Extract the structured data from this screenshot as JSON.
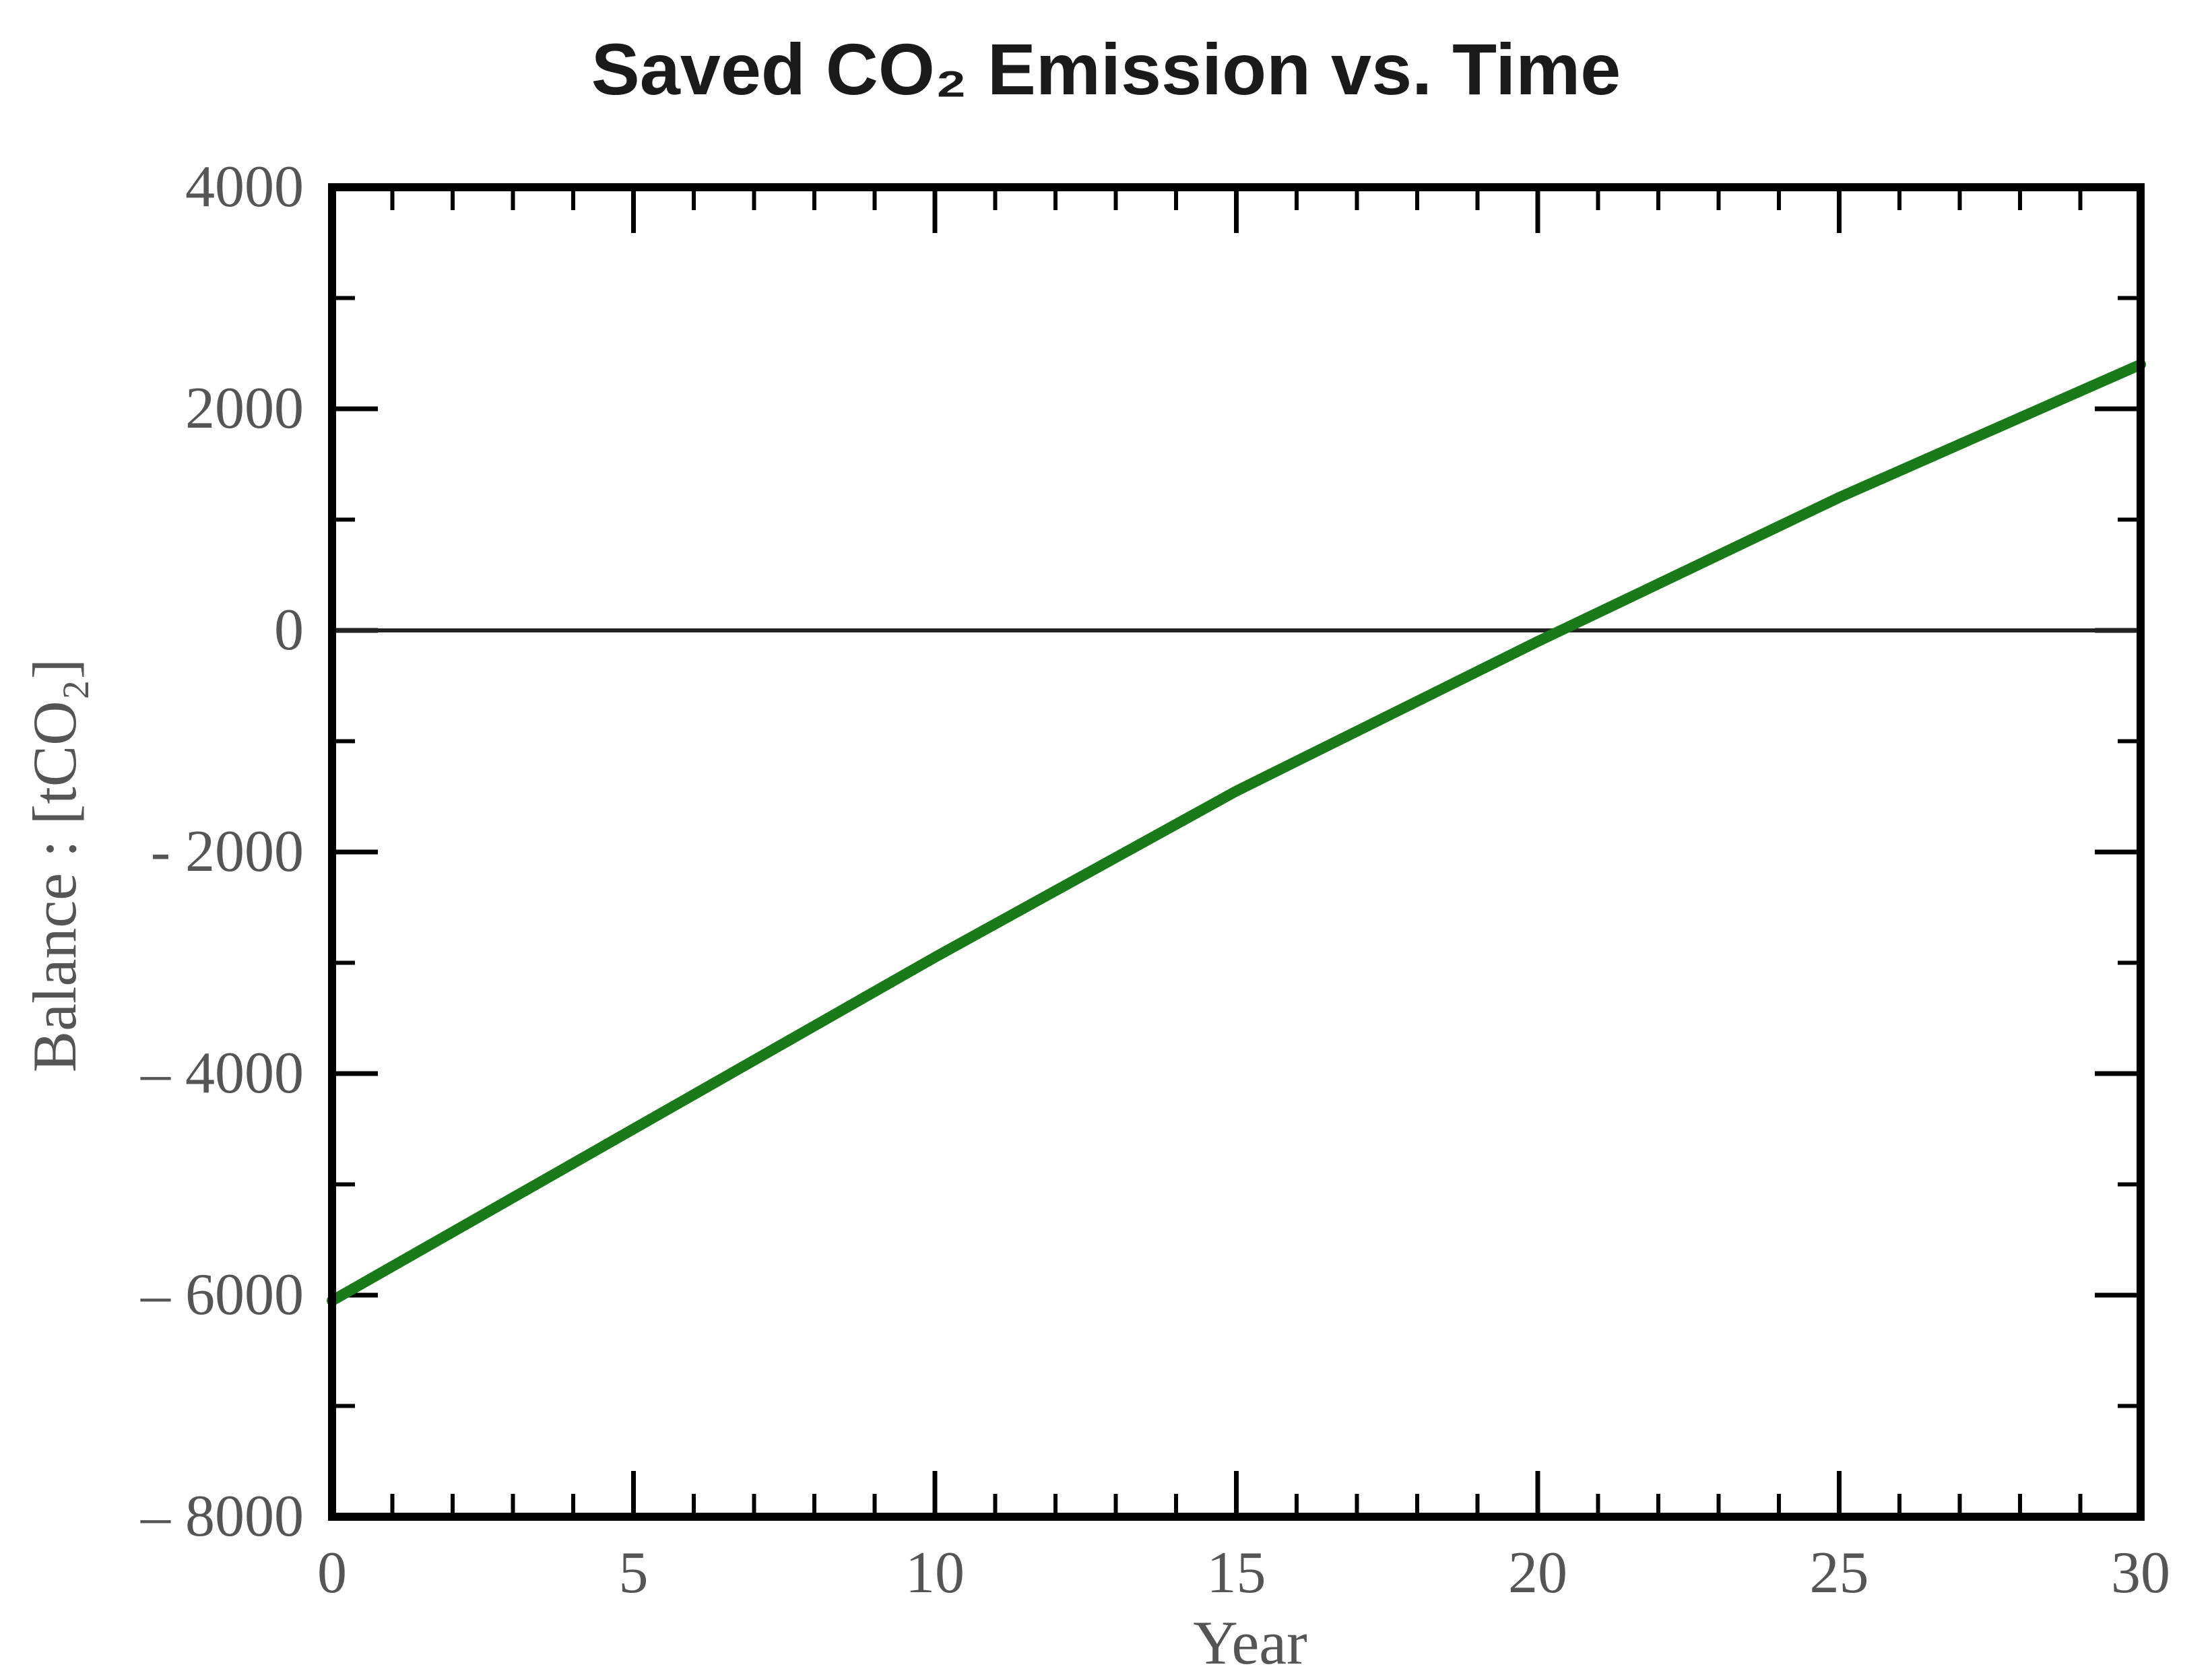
{
  "chart_data": {
    "type": "line",
    "title": "Saved CO₂ Emission vs. Time",
    "xlabel": "Year",
    "ylabel": "Balance : [tCO₂]",
    "xlim": [
      0,
      30
    ],
    "ylim": [
      -8000,
      4000
    ],
    "x_ticks": [
      0,
      5,
      10,
      15,
      20,
      25,
      30
    ],
    "y_ticks": [
      -8000,
      -6000,
      -4000,
      -2000,
      0,
      2000,
      4000
    ],
    "x_tick_labels": [
      "0",
      "5",
      "10",
      "15",
      "20",
      "25",
      "30"
    ],
    "y_tick_labels": [
      "– 8000",
      "– 6000",
      "– 4000",
      "- 2000",
      "0",
      "2000",
      "4000"
    ],
    "reference_line": {
      "y": 0,
      "color": "#222222"
    },
    "grid": false,
    "series": [
      {
        "color": "#1a7a1a",
        "x": [
          0,
          5,
          10,
          15,
          20,
          25,
          30
        ],
        "y": [
          -6050,
          -4500,
          -2950,
          -1450,
          -100,
          1200,
          2400
        ]
      }
    ]
  }
}
